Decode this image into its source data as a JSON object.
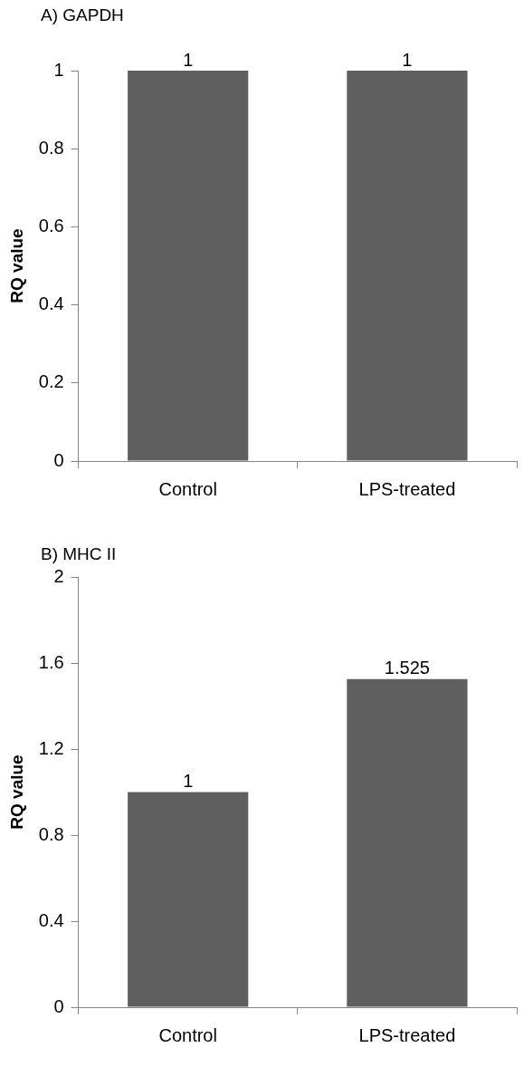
{
  "chart_data": [
    {
      "type": "bar",
      "title": "A) GAPDH",
      "ylabel": "RQ value",
      "categories": [
        "Control",
        "LPS-treated"
      ],
      "values": [
        1,
        1
      ],
      "color": "#5f5f5f",
      "ylim": [
        0,
        1
      ],
      "yticks": [
        0,
        0.2,
        0.4,
        0.6,
        0.8,
        1
      ],
      "grid": false,
      "legend": false,
      "data_labels": true
    },
    {
      "type": "bar",
      "title": "B) MHC II",
      "ylabel": "RQ value",
      "categories": [
        "Control",
        "LPS-treated"
      ],
      "values": [
        1,
        1.525
      ],
      "color": "#5f5f5f",
      "ylim": [
        0,
        2
      ],
      "yticks": [
        0,
        0.4,
        0.8,
        1.2,
        1.6,
        2
      ],
      "grid": false,
      "legend": false,
      "data_labels": true
    }
  ]
}
